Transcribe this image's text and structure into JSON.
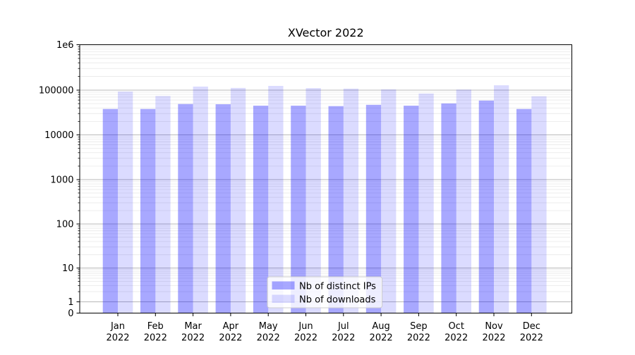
{
  "chart_data": {
    "type": "bar",
    "title": "XVector 2022",
    "categories": [
      "Jan",
      "Feb",
      "Mar",
      "Apr",
      "May",
      "Jun",
      "Jul",
      "Aug",
      "Sep",
      "Oct",
      "Nov",
      "Dec"
    ],
    "category_year": "2022",
    "series": [
      {
        "name": "Nb of distinct IPs",
        "color": "rgba(0,0,255,0.34)",
        "values": [
          38000,
          38000,
          49000,
          48500,
          45000,
          45000,
          44000,
          47000,
          45000,
          50500,
          58500,
          38000
        ]
      },
      {
        "name": "Nb of downloads",
        "color": "rgba(0,0,255,0.14)",
        "values": [
          93000,
          74000,
          120000,
          112000,
          124000,
          111000,
          108000,
          104000,
          84000,
          103000,
          128000,
          73000
        ]
      }
    ],
    "xlabel": "",
    "ylabel": "",
    "y_scale": "symlog",
    "ylim": [
      0,
      1000000
    ],
    "y_ticks": [
      {
        "label": "1e6",
        "value": 1000000
      },
      {
        "label": "100000",
        "value": 100000
      },
      {
        "label": "10000",
        "value": 10000
      },
      {
        "label": "1000",
        "value": 1000
      },
      {
        "label": "100",
        "value": 100
      },
      {
        "label": "10",
        "value": 10
      },
      {
        "label": "1",
        "value": 1
      },
      {
        "label": "0",
        "value": 0
      }
    ],
    "grid": "both",
    "legend_position": "lower center",
    "legend_labels": [
      "Nb of distinct IPs",
      "Nb of downloads"
    ]
  },
  "colors": {
    "bar_distinct_ips": "rgba(0,0,255,0.34)",
    "bar_downloads": "rgba(0,0,255,0.14)",
    "grid_major": "#b8b8b8",
    "grid_minor": "#e8e8e8",
    "spine": "#000000",
    "legend_border": "#cccccc",
    "legend_background": "rgba(255,255,255,0.8)"
  }
}
